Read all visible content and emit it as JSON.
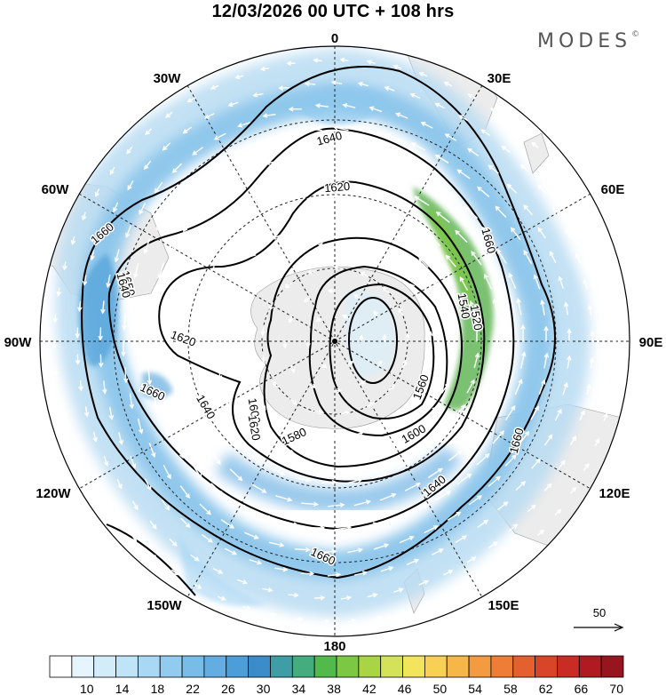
{
  "header": {
    "title": "12/03/2026  00 UTC  + 108 hrs",
    "brand": "MODES",
    "brand_mark": "©"
  },
  "map": {
    "projection": "south-polar-stereographic",
    "longitude_labels": [
      {
        "lon": 0,
        "text": "0"
      },
      {
        "lon": 30,
        "text": "30E"
      },
      {
        "lon": 60,
        "text": "60E"
      },
      {
        "lon": 90,
        "text": "90E"
      },
      {
        "lon": 120,
        "text": "120E"
      },
      {
        "lon": 150,
        "text": "150E"
      },
      {
        "lon": 180,
        "text": "180"
      },
      {
        "lon": -150,
        "text": "150W"
      },
      {
        "lon": -120,
        "text": "120W"
      },
      {
        "lon": -90,
        "text": "90W"
      },
      {
        "lon": -60,
        "text": "60W"
      },
      {
        "lon": -30,
        "text": "30W"
      }
    ],
    "contour_labels": [
      "1660",
      "1650",
      "1640",
      "1620",
      "1640",
      "1620",
      "1600",
      "1580",
      "1560",
      "1540",
      "1520",
      "1660",
      "1620",
      "1600",
      "1640",
      "1660",
      "1660",
      "1660",
      "1640"
    ],
    "wind_reference": {
      "value": "50"
    },
    "colors": {
      "land": "#ececec",
      "grid": "#222222",
      "vectors": "#ffffff"
    }
  },
  "colorbar": {
    "tick_labels": [
      "10",
      "14",
      "18",
      "22",
      "26",
      "30",
      "34",
      "38",
      "42",
      "46",
      "50",
      "54",
      "58",
      "62",
      "66",
      "70"
    ],
    "colors": [
      "#ffffff",
      "#e6f4fc",
      "#d3ecfa",
      "#bfe3f7",
      "#a9d8f4",
      "#91cbef",
      "#79bce8",
      "#63ade2",
      "#4d9ed8",
      "#3c8cc9",
      "#3f9ea5",
      "#44ac7e",
      "#52b94c",
      "#7cc744",
      "#a9d544",
      "#d4e25a",
      "#f2e55c",
      "#f7d054",
      "#f6b749",
      "#f39b40",
      "#ee7e37",
      "#e5602f",
      "#d94529",
      "#c82c24",
      "#b01a21",
      "#96151e"
    ]
  }
}
